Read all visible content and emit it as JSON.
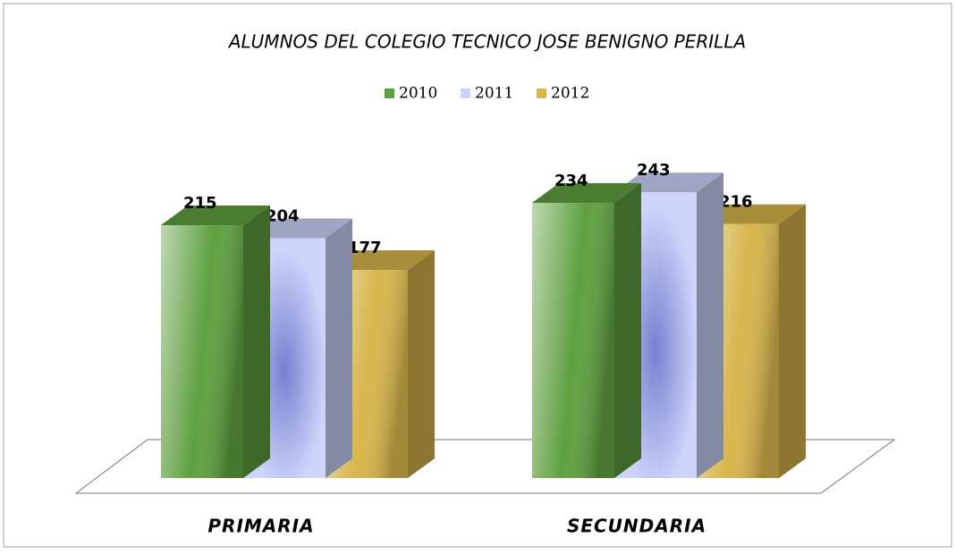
{
  "chart_data": {
    "type": "bar3d",
    "title": "ALUMNOS DEL COLEGIO TECNICO JOSE BENIGNO PERILLA",
    "categories": [
      "PRIMARIA",
      "SECUNDARIA"
    ],
    "series": [
      {
        "name": "2010",
        "color": "#5fa040",
        "values": [
          215,
          234
        ]
      },
      {
        "name": "2011",
        "color": "#ccd4fa",
        "values": [
          204,
          243
        ]
      },
      {
        "name": "2012",
        "color": "#d8b64c",
        "values": [
          177,
          216
        ]
      }
    ],
    "legend": "top"
  }
}
